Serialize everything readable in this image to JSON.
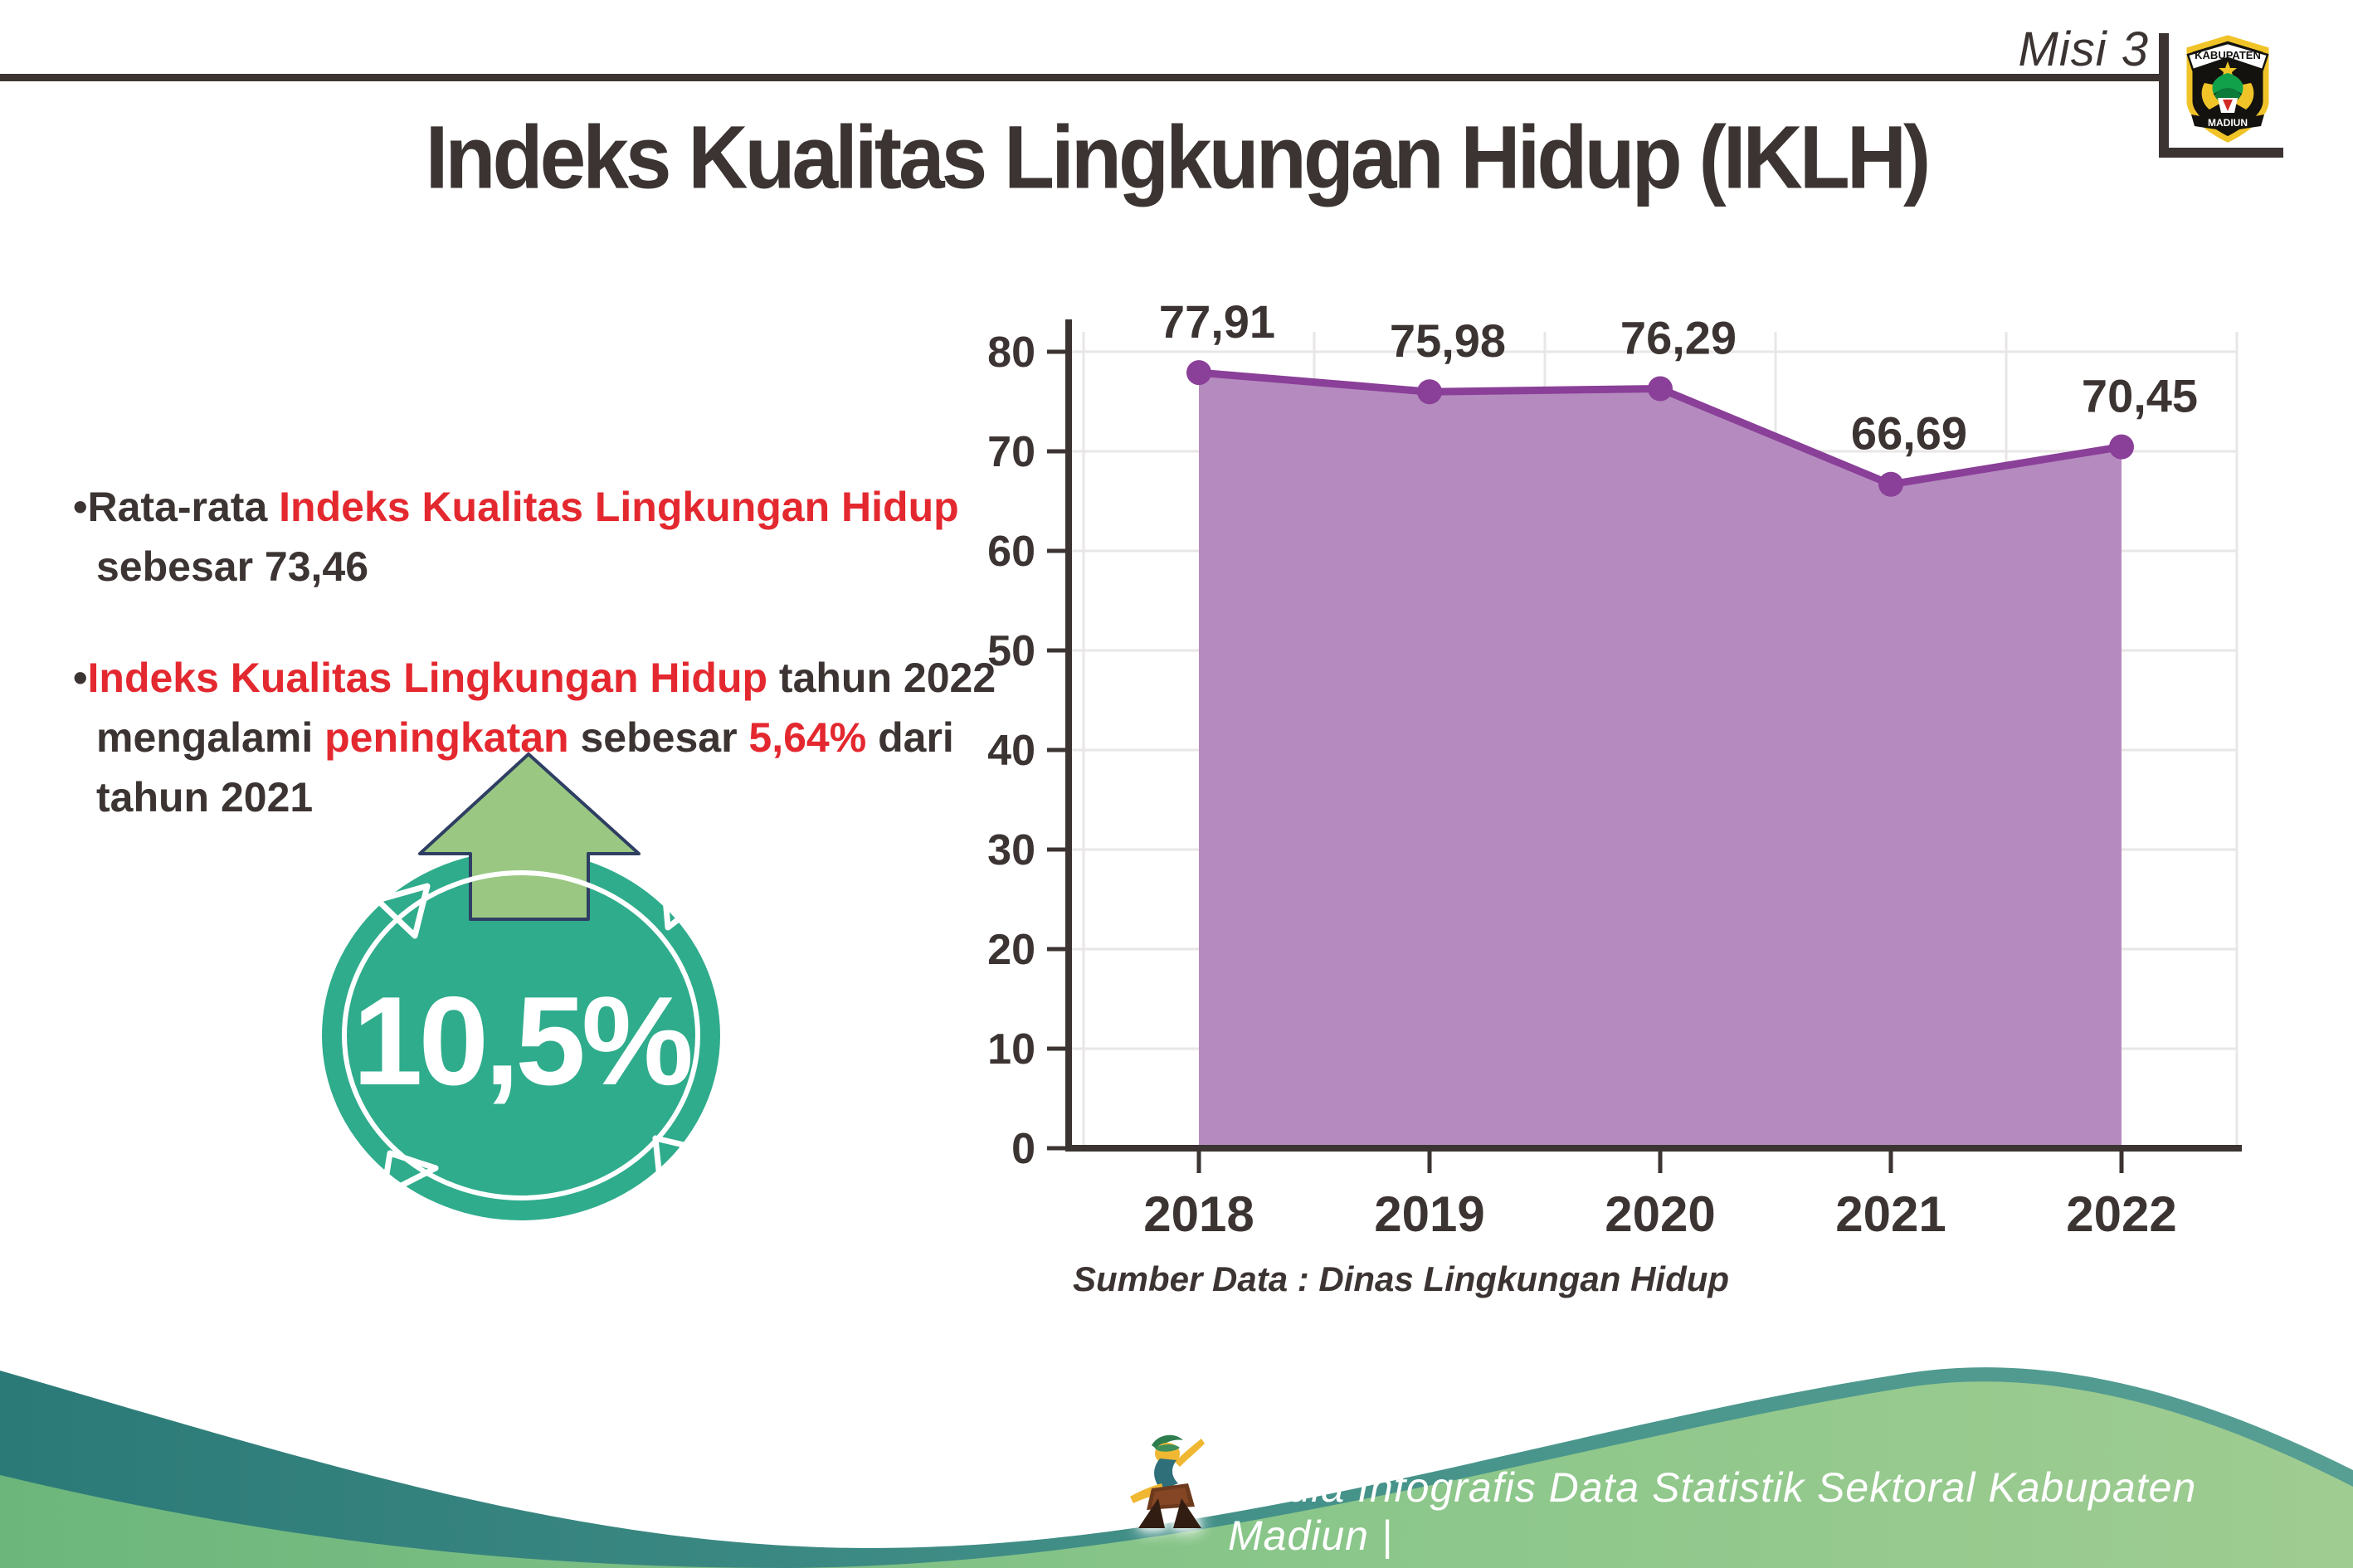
{
  "header": {
    "misi_label": "Misi 3",
    "logo": {
      "top_text": "KABUPATEN",
      "bottom_text": "MADIUN"
    }
  },
  "title": "Indeks Kualitas Lingkungan Hidup (IKLH)",
  "bullets": {
    "b1": {
      "lines": [
        [
          {
            "t": "•",
            "c": "dark"
          },
          {
            "t": "Rata-rata ",
            "c": "dark"
          },
          {
            "t": "Indeks Kualitas Lingkungan Hidup",
            "c": "red"
          }
        ],
        [
          {
            "t": "sebesar 73,46",
            "c": "dark"
          }
        ]
      ]
    },
    "b2": {
      "lines": [
        [
          {
            "t": "•",
            "c": "dark"
          },
          {
            "t": "Indeks Kualitas Lingkungan Hidup",
            "c": "red"
          },
          {
            "t": " tahun 2022",
            "c": "dark"
          }
        ],
        [
          {
            "t": "mengalami ",
            "c": "dark"
          },
          {
            "t": "peningkatan",
            "c": "red"
          },
          {
            "t": " sebesar ",
            "c": "dark"
          },
          {
            "t": "5,64%",
            "c": "red"
          },
          {
            "t": " dari",
            "c": "dark"
          }
        ],
        [
          {
            "t": "tahun 2021",
            "c": "dark"
          }
        ]
      ]
    }
  },
  "badge": {
    "value": "10,5%",
    "circle_color": "#2fac8c",
    "arrow_color": "#9ac883",
    "arrow_outline": "#2f3f63"
  },
  "chart_data": {
    "type": "area",
    "categories": [
      "2018",
      "2019",
      "2020",
      "2021",
      "2022"
    ],
    "values": [
      77.91,
      75.98,
      76.29,
      66.69,
      70.45
    ],
    "labels": [
      "77,91",
      "75,98",
      "76,29",
      "66,69",
      "70,45"
    ],
    "title": "",
    "xlabel": "",
    "ylabel": "",
    "ylim": [
      0,
      80
    ],
    "ytick_step": 10,
    "grid": true,
    "legend": "none",
    "colors": {
      "area": "#b58bbf",
      "line": "#8a3f98",
      "marker": "#8a3f98",
      "axis": "#3b3432",
      "gridline": "#e9e6e6",
      "label": "#3b3432"
    }
  },
  "source": "Sumber Data : Dinas Lingkungan Hidup",
  "footer": {
    "text": "Media Infografis Data Statistik Sektoral Kabupaten Madiun |",
    "teal_wave": "#357f7c",
    "green_wave": "#7fc087"
  }
}
